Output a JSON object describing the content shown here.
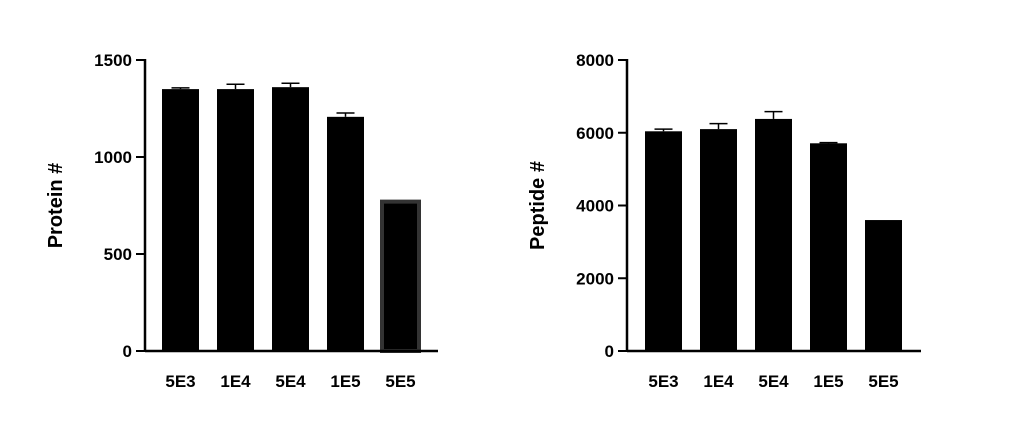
{
  "chart_data": [
    {
      "type": "bar",
      "categories": [
        "5E3",
        "1E4",
        "5E4",
        "1E5",
        "5E5"
      ],
      "values": [
        1350,
        1350,
        1360,
        1207,
        770
      ],
      "errors": [
        6,
        25,
        20,
        20,
        0
      ],
      "ylabel": "Protein #",
      "ylim": [
        0,
        1500
      ],
      "yticks": [
        0,
        500,
        1000,
        1500
      ],
      "ytick_labels": [
        "0",
        "500",
        "1000",
        "1500"
      ],
      "bar_colors": [
        "#000000",
        "#000000",
        "#000000",
        "#000000",
        "#000000"
      ],
      "bar_outline_colors": [
        "#000000",
        "#000000",
        "#000000",
        "#000000",
        "#333333"
      ],
      "grid": false
    },
    {
      "type": "bar",
      "categories": [
        "5E3",
        "1E4",
        "5E4",
        "1E5",
        "5E5"
      ],
      "values": [
        6040,
        6100,
        6380,
        5710,
        3600
      ],
      "errors": [
        60,
        150,
        200,
        20,
        0
      ],
      "ylabel": "Peptide #",
      "ylim": [
        0,
        8000
      ],
      "yticks": [
        0,
        2000,
        4000,
        6000,
        8000
      ],
      "ytick_labels": [
        "0",
        "2000",
        "4000",
        "6000",
        "8000"
      ],
      "bar_colors": [
        "#000000",
        "#000000",
        "#000000",
        "#000000",
        "#000000"
      ],
      "bar_outline_colors": [
        "#000000",
        "#000000",
        "#000000",
        "#000000",
        "#000000"
      ],
      "grid": false
    }
  ]
}
